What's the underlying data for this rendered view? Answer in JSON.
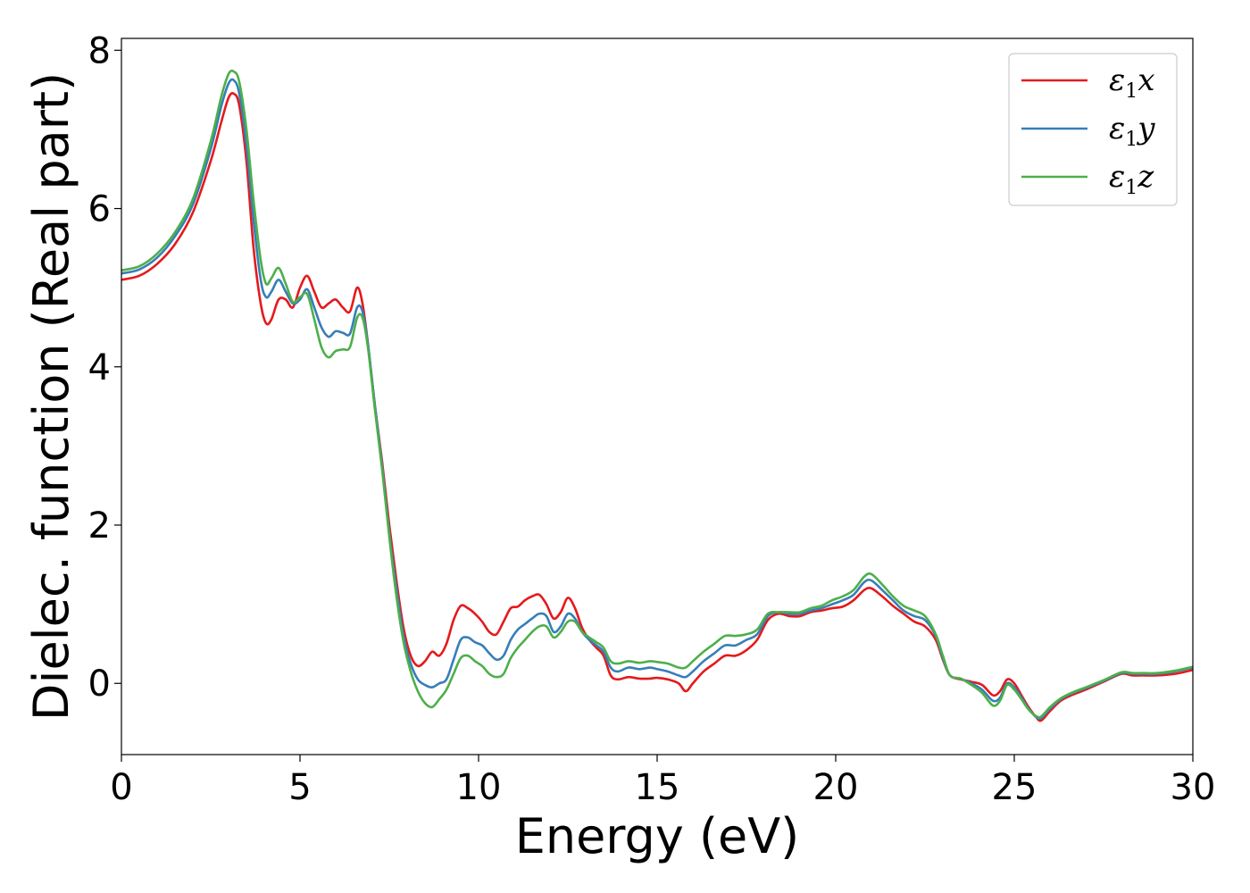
{
  "chart_data": {
    "type": "line",
    "title": "",
    "xlabel": "Energy (eV)",
    "ylabel": "Dielec. function (Real part)",
    "xlim": [
      0,
      30
    ],
    "ylim": [
      -0.9,
      8.15
    ],
    "xticks": [
      0,
      5,
      10,
      15,
      20,
      25,
      30
    ],
    "yticks": [
      0,
      2,
      4,
      6,
      8
    ],
    "grid": false,
    "legend_position": "top-right",
    "series": [
      {
        "name": "ε1x",
        "legend": {
          "base": "ε",
          "sub": "1",
          "suffix": "x"
        },
        "color": "#e41a1c",
        "x": [
          0,
          0.5,
          1.0,
          1.5,
          2.0,
          2.5,
          2.8,
          3.0,
          3.15,
          3.3,
          3.5,
          3.7,
          3.9,
          4.05,
          4.2,
          4.4,
          4.6,
          4.8,
          5.0,
          5.2,
          5.4,
          5.6,
          5.8,
          6.0,
          6.2,
          6.4,
          6.6,
          6.75,
          6.9,
          7.1,
          7.3,
          7.5,
          7.7,
          7.9,
          8.1,
          8.3,
          8.5,
          8.7,
          8.9,
          9.1,
          9.3,
          9.5,
          9.7,
          9.9,
          10.1,
          10.3,
          10.5,
          10.7,
          10.9,
          11.1,
          11.3,
          11.5,
          11.7,
          11.9,
          12.1,
          12.3,
          12.5,
          12.7,
          12.9,
          13.1,
          13.3,
          13.5,
          13.7,
          13.9,
          14.2,
          14.5,
          14.8,
          15.0,
          15.3,
          15.6,
          15.8,
          16.0,
          16.3,
          16.6,
          16.9,
          17.2,
          17.5,
          17.8,
          18.1,
          18.4,
          18.7,
          19.0,
          19.3,
          19.6,
          19.9,
          20.2,
          20.5,
          20.8,
          21.0,
          21.3,
          21.6,
          21.9,
          22.2,
          22.5,
          22.8,
          23.0,
          23.2,
          23.5,
          23.8,
          24.1,
          24.4,
          24.6,
          24.8,
          25.0,
          25.2,
          25.4,
          25.6,
          25.75,
          26.0,
          26.3,
          26.6,
          27.0,
          27.5,
          28.0,
          28.3,
          28.6,
          29.0,
          29.5,
          30.0
        ],
        "y": [
          5.1,
          5.15,
          5.3,
          5.55,
          5.95,
          6.6,
          7.1,
          7.4,
          7.45,
          7.3,
          6.6,
          5.5,
          4.8,
          4.55,
          4.6,
          4.85,
          4.85,
          4.75,
          5.0,
          5.15,
          4.95,
          4.75,
          4.8,
          4.85,
          4.75,
          4.7,
          5.0,
          4.8,
          4.3,
          3.5,
          2.8,
          2.0,
          1.3,
          0.7,
          0.35,
          0.22,
          0.28,
          0.4,
          0.35,
          0.5,
          0.8,
          0.98,
          0.95,
          0.88,
          0.78,
          0.65,
          0.62,
          0.78,
          0.95,
          0.97,
          1.05,
          1.1,
          1.12,
          1.0,
          0.82,
          0.9,
          1.08,
          0.95,
          0.7,
          0.55,
          0.45,
          0.35,
          0.1,
          0.05,
          0.08,
          0.06,
          0.06,
          0.07,
          0.05,
          0.0,
          -0.1,
          0.0,
          0.15,
          0.25,
          0.35,
          0.35,
          0.42,
          0.55,
          0.8,
          0.88,
          0.85,
          0.85,
          0.9,
          0.92,
          0.95,
          0.97,
          1.05,
          1.18,
          1.2,
          1.1,
          0.98,
          0.88,
          0.78,
          0.72,
          0.55,
          0.3,
          0.1,
          0.05,
          0.02,
          -0.02,
          -0.15,
          -0.1,
          0.05,
          0.0,
          -0.15,
          -0.3,
          -0.42,
          -0.47,
          -0.35,
          -0.22,
          -0.15,
          -0.08,
          0.02,
          0.12,
          0.1,
          0.1,
          0.1,
          0.12,
          0.17
        ]
      },
      {
        "name": "ε1y",
        "legend": {
          "base": "ε",
          "sub": "1",
          "suffix": "y"
        },
        "color": "#377eb8",
        "x": [
          0,
          0.5,
          1.0,
          1.5,
          2.0,
          2.5,
          2.8,
          3.0,
          3.15,
          3.3,
          3.5,
          3.7,
          3.9,
          4.05,
          4.2,
          4.4,
          4.6,
          4.8,
          5.0,
          5.2,
          5.4,
          5.6,
          5.8,
          6.0,
          6.2,
          6.4,
          6.6,
          6.75,
          6.9,
          7.1,
          7.3,
          7.5,
          7.7,
          7.9,
          8.1,
          8.3,
          8.5,
          8.7,
          8.9,
          9.1,
          9.3,
          9.5,
          9.7,
          9.9,
          10.1,
          10.3,
          10.5,
          10.7,
          10.9,
          11.1,
          11.3,
          11.5,
          11.7,
          11.9,
          12.1,
          12.3,
          12.5,
          12.7,
          12.9,
          13.1,
          13.3,
          13.5,
          13.7,
          13.9,
          14.2,
          14.5,
          14.8,
          15.0,
          15.3,
          15.6,
          15.8,
          16.0,
          16.3,
          16.6,
          16.9,
          17.2,
          17.5,
          17.8,
          18.1,
          18.4,
          18.7,
          19.0,
          19.3,
          19.6,
          19.9,
          20.2,
          20.5,
          20.8,
          21.0,
          21.3,
          21.6,
          21.9,
          22.2,
          22.5,
          22.8,
          23.0,
          23.2,
          23.5,
          23.8,
          24.1,
          24.4,
          24.6,
          24.8,
          25.0,
          25.2,
          25.4,
          25.6,
          25.75,
          26.0,
          26.3,
          26.6,
          27.0,
          27.5,
          28.0,
          28.3,
          28.6,
          29.0,
          29.5,
          30.0
        ],
        "y": [
          5.18,
          5.23,
          5.38,
          5.65,
          6.05,
          6.75,
          7.3,
          7.58,
          7.62,
          7.45,
          6.8,
          5.85,
          5.1,
          4.88,
          4.95,
          5.1,
          4.95,
          4.8,
          4.85,
          4.98,
          4.75,
          4.5,
          4.38,
          4.45,
          4.43,
          4.42,
          4.75,
          4.7,
          4.3,
          3.5,
          2.75,
          1.9,
          1.2,
          0.6,
          0.25,
          0.05,
          -0.02,
          -0.05,
          0.0,
          0.05,
          0.3,
          0.55,
          0.58,
          0.52,
          0.48,
          0.38,
          0.3,
          0.35,
          0.55,
          0.68,
          0.75,
          0.82,
          0.88,
          0.85,
          0.65,
          0.72,
          0.88,
          0.82,
          0.65,
          0.55,
          0.48,
          0.4,
          0.2,
          0.15,
          0.2,
          0.18,
          0.2,
          0.18,
          0.15,
          0.1,
          0.08,
          0.15,
          0.28,
          0.38,
          0.48,
          0.48,
          0.55,
          0.62,
          0.85,
          0.9,
          0.88,
          0.88,
          0.92,
          0.95,
          1.0,
          1.05,
          1.12,
          1.28,
          1.3,
          1.18,
          1.05,
          0.92,
          0.85,
          0.8,
          0.6,
          0.32,
          0.1,
          0.06,
          0.0,
          -0.08,
          -0.22,
          -0.18,
          0.0,
          -0.05,
          -0.18,
          -0.32,
          -0.42,
          -0.44,
          -0.32,
          -0.2,
          -0.13,
          -0.06,
          0.03,
          0.13,
          0.12,
          0.12,
          0.12,
          0.15,
          0.2
        ]
      },
      {
        "name": "ε1z",
        "legend": {
          "base": "ε",
          "sub": "1",
          "suffix": "z"
        },
        "color": "#4daf4a",
        "x": [
          0,
          0.5,
          1.0,
          1.5,
          2.0,
          2.5,
          2.8,
          3.0,
          3.15,
          3.3,
          3.5,
          3.7,
          3.9,
          4.05,
          4.2,
          4.4,
          4.6,
          4.8,
          5.0,
          5.2,
          5.4,
          5.6,
          5.8,
          6.0,
          6.2,
          6.4,
          6.6,
          6.75,
          6.9,
          7.1,
          7.3,
          7.5,
          7.7,
          7.9,
          8.1,
          8.3,
          8.5,
          8.7,
          8.9,
          9.1,
          9.3,
          9.5,
          9.7,
          9.9,
          10.1,
          10.3,
          10.5,
          10.7,
          10.9,
          11.1,
          11.3,
          11.5,
          11.7,
          11.9,
          12.1,
          12.3,
          12.5,
          12.7,
          12.9,
          13.1,
          13.3,
          13.5,
          13.7,
          13.9,
          14.2,
          14.5,
          14.8,
          15.0,
          15.3,
          15.6,
          15.8,
          16.0,
          16.3,
          16.6,
          16.9,
          17.2,
          17.5,
          17.8,
          18.1,
          18.4,
          18.7,
          19.0,
          19.3,
          19.6,
          19.9,
          20.2,
          20.5,
          20.8,
          21.0,
          21.3,
          21.6,
          21.9,
          22.2,
          22.5,
          22.8,
          23.0,
          23.2,
          23.5,
          23.8,
          24.1,
          24.4,
          24.6,
          24.8,
          25.0,
          25.2,
          25.4,
          25.6,
          25.75,
          26.0,
          26.3,
          26.6,
          27.0,
          27.5,
          28.0,
          28.3,
          28.6,
          29.0,
          29.5,
          30.0
        ],
        "y": [
          5.22,
          5.27,
          5.43,
          5.7,
          6.12,
          6.85,
          7.42,
          7.7,
          7.73,
          7.6,
          7.0,
          6.1,
          5.35,
          5.05,
          5.12,
          5.25,
          5.05,
          4.82,
          4.88,
          4.92,
          4.6,
          4.25,
          4.12,
          4.2,
          4.22,
          4.25,
          4.62,
          4.62,
          4.25,
          3.45,
          2.7,
          1.85,
          1.1,
          0.52,
          0.15,
          -0.1,
          -0.25,
          -0.3,
          -0.2,
          -0.08,
          0.12,
          0.32,
          0.35,
          0.28,
          0.22,
          0.12,
          0.08,
          0.12,
          0.32,
          0.45,
          0.55,
          0.65,
          0.72,
          0.72,
          0.58,
          0.65,
          0.78,
          0.78,
          0.65,
          0.58,
          0.52,
          0.45,
          0.28,
          0.25,
          0.28,
          0.26,
          0.28,
          0.27,
          0.25,
          0.2,
          0.2,
          0.28,
          0.4,
          0.5,
          0.6,
          0.6,
          0.62,
          0.68,
          0.88,
          0.9,
          0.9,
          0.9,
          0.95,
          0.98,
          1.05,
          1.1,
          1.18,
          1.35,
          1.38,
          1.25,
          1.1,
          0.98,
          0.92,
          0.85,
          0.62,
          0.35,
          0.1,
          0.06,
          -0.02,
          -0.12,
          -0.28,
          -0.22,
          -0.02,
          -0.08,
          -0.2,
          -0.33,
          -0.41,
          -0.42,
          -0.3,
          -0.19,
          -0.12,
          -0.05,
          0.04,
          0.14,
          0.13,
          0.13,
          0.13,
          0.16,
          0.21
        ]
      }
    ]
  }
}
